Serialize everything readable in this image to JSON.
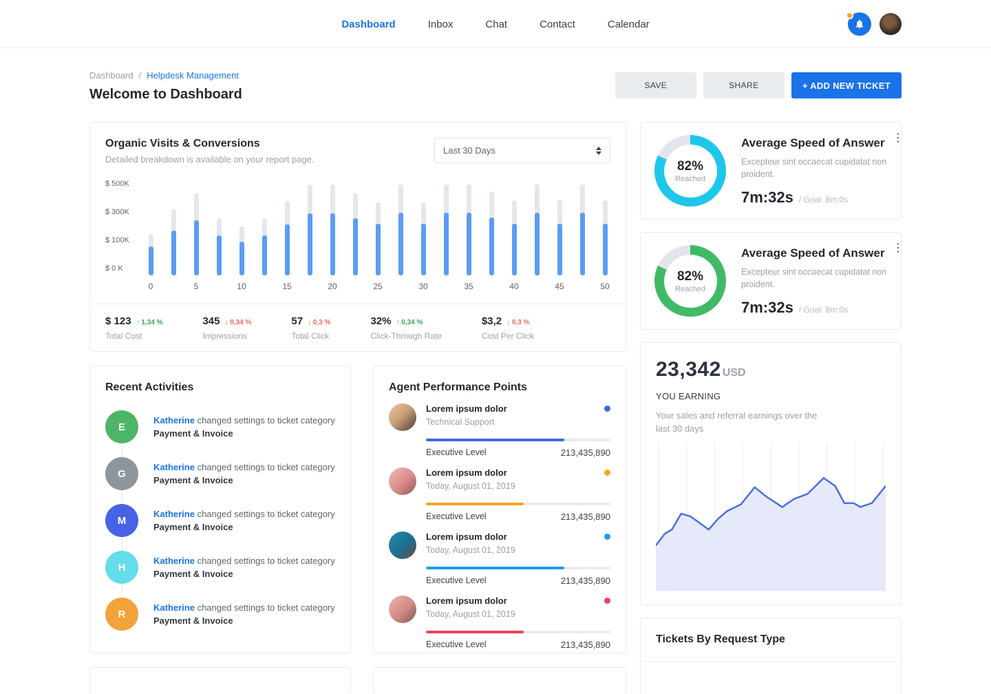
{
  "header": {
    "nav": [
      {
        "label": "Dashboard",
        "active": true
      },
      {
        "label": "Inbox",
        "active": false
      },
      {
        "label": "Chat",
        "active": false
      },
      {
        "label": "Contact",
        "active": false
      },
      {
        "label": "Calendar",
        "active": false
      }
    ],
    "notification_icon": "bell-icon",
    "notification_badge_color": "#f5a623",
    "notification_bg": "#1a73e8"
  },
  "page": {
    "breadcrumb": {
      "root": "Dashboard",
      "separator": "/",
      "current": "Helpdesk Management"
    },
    "title": "Welcome to Dashboard",
    "actions": {
      "save": "SAVE",
      "share": "SHARE",
      "add_ticket": "+ ADD NEW TICKET"
    }
  },
  "organic": {
    "title": "Organic Visits & Conversions",
    "subtitle": "Detailed breakdown is available on your report page.",
    "range_selected": "Last 30 Days",
    "y_ticks": [
      "$ 500K",
      "$ 300K",
      "$ 100K",
      "$ 0 K"
    ],
    "stats": [
      {
        "value": "$ 123",
        "delta": "1,34 %",
        "direction": "up",
        "label": "Total Cost"
      },
      {
        "value": "345",
        "delta": "0,34 %",
        "direction": "down",
        "label": "Impressions"
      },
      {
        "value": "57",
        "delta": "0,3 %",
        "direction": "down",
        "label": "Total Click"
      },
      {
        "value": "32%",
        "delta": "0,34 %",
        "direction": "up",
        "label": "Click-Through Rate"
      },
      {
        "value": "$3,2",
        "delta": "0,3 %",
        "direction": "down",
        "label": "Cost Per Click"
      }
    ]
  },
  "chart_data": [
    {
      "id": "organic-bars",
      "type": "bar",
      "title": "Organic Visits & Conversions",
      "x": [
        0,
        2.5,
        5,
        7.5,
        10,
        12.5,
        15,
        17.5,
        20,
        22.5,
        25,
        27.5,
        30,
        32.5,
        35,
        37.5,
        40,
        42.5,
        45,
        47.5,
        50
      ],
      "x_tick_labels": [
        "0",
        "5",
        "10",
        "15",
        "20",
        "25",
        "30",
        "35",
        "40",
        "45",
        "50"
      ],
      "series": [
        {
          "name": "total",
          "color": "#e4e7eb",
          "values": [
            230,
            370,
            460,
            320,
            275,
            320,
            415,
            510,
            510,
            460,
            410,
            510,
            410,
            510,
            510,
            470,
            420,
            510,
            420,
            510,
            420
          ]
        },
        {
          "name": "converted",
          "color": "#5b9cf6",
          "values": [
            160,
            250,
            310,
            225,
            190,
            225,
            285,
            345,
            345,
            320,
            290,
            350,
            290,
            350,
            350,
            325,
            290,
            350,
            290,
            350,
            290
          ]
        }
      ],
      "ylabel_ticks": [
        "$ 500K",
        "$ 300K",
        "$ 100K",
        "$ 0 K"
      ],
      "ylim": [
        0,
        520
      ],
      "unit": "K USD"
    },
    {
      "id": "asa-donut-1",
      "type": "pie",
      "percent": 82,
      "color": "#1ec6ea",
      "track_color": "#e2e5e9"
    },
    {
      "id": "asa-donut-2",
      "type": "pie",
      "percent": 82,
      "color": "#41ba66",
      "track_color": "#e2e5e9"
    },
    {
      "id": "earning-area",
      "type": "area",
      "line_color": "#4a6ee0",
      "fill_color": "#e5e9f9",
      "gridlines": 9,
      "x_pct": [
        0,
        4,
        7,
        11,
        15,
        19,
        23,
        27,
        31,
        37,
        43,
        48,
        55,
        60,
        66,
        73,
        78,
        82,
        86,
        89,
        94,
        100
      ],
      "y_pct": [
        73,
        64,
        61,
        49,
        51,
        56,
        61,
        53,
        47,
        42,
        29,
        36,
        44,
        38,
        34,
        22,
        28,
        41,
        41,
        44,
        41,
        28
      ]
    }
  ],
  "activities": {
    "title": "Recent Activities",
    "items": [
      {
        "initial": "E",
        "color": "#4cb566",
        "user": "Katherine",
        "action": "changed settings to ticket category",
        "target": "Payment & Invoice"
      },
      {
        "initial": "G",
        "color": "#8d959d",
        "user": "Katherine",
        "action": "changed settings to ticket category",
        "target": "Payment & Invoice"
      },
      {
        "initial": "M",
        "color": "#4762e6",
        "user": "Katherine",
        "action": "changed settings to ticket category",
        "target": "Payment & Invoice"
      },
      {
        "initial": "H",
        "color": "#64dcec",
        "user": "Katherine",
        "action": "changed settings to ticket category",
        "target": "Payment & Invoice"
      },
      {
        "initial": "R",
        "color": "#f2a33a",
        "user": "Katherine",
        "action": "changed settings to ticket category",
        "target": "Payment & Invoice"
      }
    ]
  },
  "agents": {
    "title": "Agent Performance Points",
    "items": [
      {
        "name": "Lorem ipsum dolor",
        "sub": "Technical Support",
        "dot_color": "#4169e1",
        "progress_pct": 75,
        "progress_color": "#4169e1",
        "level": "Executive Level",
        "points": "213,435,890",
        "avatar": "linear-gradient(135deg,#e8c49e 0%,#caa27a 45%,#4a3a30 100%)"
      },
      {
        "name": "Lorem ipsum dolor",
        "sub": "Today, August 01, 2019",
        "dot_color": "#f5a623",
        "progress_pct": 53,
        "progress_color": "#f5a623",
        "level": "Executive Level",
        "points": "213,435,890",
        "avatar": "linear-gradient(135deg,#f0b9b4 0%,#d98b8b 55%,#8a5a52 100%)"
      },
      {
        "name": "Lorem ipsum dolor",
        "sub": "Today, August 01, 2019",
        "dot_color": "#1e9bf0",
        "progress_pct": 75,
        "progress_color": "#1e9bf0",
        "level": "Executive Level",
        "points": "213,435,890",
        "avatar": "linear-gradient(135deg,#2589a8 0%,#1d6e93 55%,#6b4a38 100%)"
      },
      {
        "name": "Lorem ipsum dolor",
        "sub": "Today, August 01, 2019",
        "dot_color": "#ef3f62",
        "progress_pct": 53,
        "progress_color": "#ef3f62",
        "level": "Executive Level",
        "points": "213,435,890",
        "avatar": "linear-gradient(135deg,#edb3ac 0%,#d28a86 55%,#7e564e 100%)"
      }
    ]
  },
  "asa_cards": [
    {
      "percent_text": "82%",
      "center_label": "Reached",
      "title": "Average Speed of Answer",
      "desc": "Excepteur sint occaecat cupidatat non proident.",
      "time": "7m:32s",
      "goal": "/ Goal: 8m:0s"
    },
    {
      "percent_text": "82%",
      "center_label": "Reached",
      "title": "Average Speed of Answer",
      "desc": "Excepteur sint occaecat cupidatat non proident.",
      "time": "7m:32s",
      "goal": "/ Goal: 8m:0s"
    }
  ],
  "earning": {
    "amount": "23,342",
    "currency": "USD",
    "label": "YOU EARNING",
    "desc": "Your sales and referral earnings over the last 30 days"
  },
  "tickets": {
    "title": "Tickets By Request Type"
  }
}
